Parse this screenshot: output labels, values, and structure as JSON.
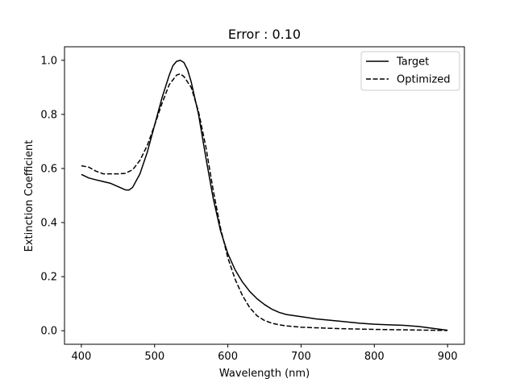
{
  "chart_data": {
    "type": "line",
    "title": "Error : 0.10",
    "xlabel": "Wavelength (nm)",
    "ylabel": "Extinction Coefficient",
    "xlim": [
      377,
      923
    ],
    "ylim": [
      -0.05,
      1.05
    ],
    "xticks": [
      400,
      500,
      600,
      700,
      800,
      900
    ],
    "yticks": [
      0.0,
      0.2,
      0.4,
      0.6,
      0.8,
      1.0
    ],
    "xtick_labels": [
      "400",
      "500",
      "600",
      "700",
      "800",
      "900"
    ],
    "ytick_labels": [
      "0.0",
      "0.2",
      "0.4",
      "0.6",
      "0.8",
      "1.0"
    ],
    "grid": false,
    "legend": "top-right",
    "series": [
      {
        "name": "Target",
        "style": "solid",
        "color": "#000000",
        "x": [
          400,
          410,
          420,
          440,
          450,
          460,
          465,
          470,
          480,
          490,
          500,
          510,
          520,
          525,
          530,
          535,
          540,
          545,
          550,
          560,
          570,
          580,
          590,
          600,
          610,
          620,
          630,
          640,
          650,
          660,
          670,
          680,
          700,
          720,
          750,
          780,
          800,
          820,
          840,
          860,
          880,
          900
        ],
        "y": [
          0.578,
          0.565,
          0.558,
          0.545,
          0.533,
          0.521,
          0.52,
          0.53,
          0.58,
          0.66,
          0.76,
          0.86,
          0.945,
          0.98,
          0.996,
          1.0,
          0.992,
          0.965,
          0.92,
          0.8,
          0.64,
          0.49,
          0.37,
          0.285,
          0.225,
          0.18,
          0.145,
          0.118,
          0.097,
          0.08,
          0.068,
          0.06,
          0.052,
          0.044,
          0.036,
          0.028,
          0.024,
          0.022,
          0.02,
          0.016,
          0.009,
          0.002
        ]
      },
      {
        "name": "Optimized",
        "style": "dashed",
        "color": "#000000",
        "x": [
          400,
          410,
          420,
          430,
          440,
          450,
          460,
          470,
          480,
          490,
          500,
          510,
          520,
          530,
          535,
          540,
          550,
          560,
          570,
          580,
          590,
          600,
          610,
          620,
          630,
          640,
          650,
          660,
          670,
          680,
          700,
          750,
          800,
          850,
          900
        ],
        "y": [
          0.61,
          0.605,
          0.59,
          0.58,
          0.58,
          0.58,
          0.582,
          0.595,
          0.63,
          0.685,
          0.76,
          0.84,
          0.91,
          0.945,
          0.95,
          0.94,
          0.9,
          0.81,
          0.68,
          0.52,
          0.38,
          0.27,
          0.19,
          0.13,
          0.085,
          0.055,
          0.038,
          0.028,
          0.022,
          0.018,
          0.013,
          0.008,
          0.005,
          0.003,
          0.001
        ]
      }
    ]
  }
}
